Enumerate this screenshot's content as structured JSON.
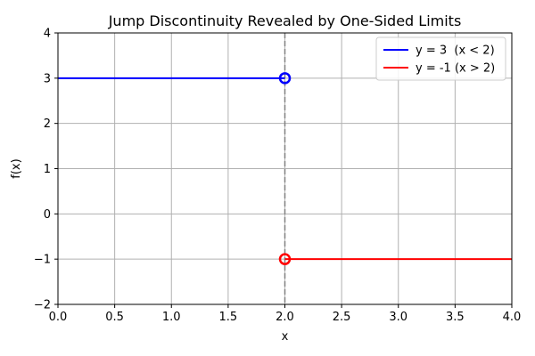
{
  "chart_data": {
    "type": "line",
    "title": "Jump Discontinuity Revealed by One-Sided Limits",
    "xlabel": "x",
    "ylabel": "f(x)",
    "xlim": [
      0,
      4
    ],
    "ylim": [
      -2,
      4
    ],
    "grid": true,
    "legend_position": "top-right",
    "x_ticks": [
      0.0,
      0.5,
      1.0,
      1.5,
      2.0,
      2.5,
      3.0,
      3.5,
      4.0
    ],
    "x_tick_labels": [
      "0.0",
      "0.5",
      "1.0",
      "1.5",
      "2.0",
      "2.5",
      "3.0",
      "3.5",
      "4.0"
    ],
    "y_ticks": [
      -2,
      -1,
      0,
      1,
      2,
      3,
      4
    ],
    "y_tick_labels": [
      "−2",
      "−1",
      "0",
      "1",
      "2",
      "3",
      "4"
    ],
    "series": [
      {
        "name": "y = 3  (x < 2)",
        "color": "#0000ff",
        "x": [
          0,
          2
        ],
        "y": [
          3,
          3
        ],
        "open_endpoint": [
          2,
          3
        ]
      },
      {
        "name": "y = -1 (x > 2)",
        "color": "#ff0000",
        "x": [
          2,
          4
        ],
        "y": [
          -1,
          -1
        ],
        "open_endpoint": [
          2,
          -1
        ]
      }
    ],
    "vertical_reference_line": {
      "x": 2,
      "color": "#808080",
      "style": "dashed"
    }
  }
}
